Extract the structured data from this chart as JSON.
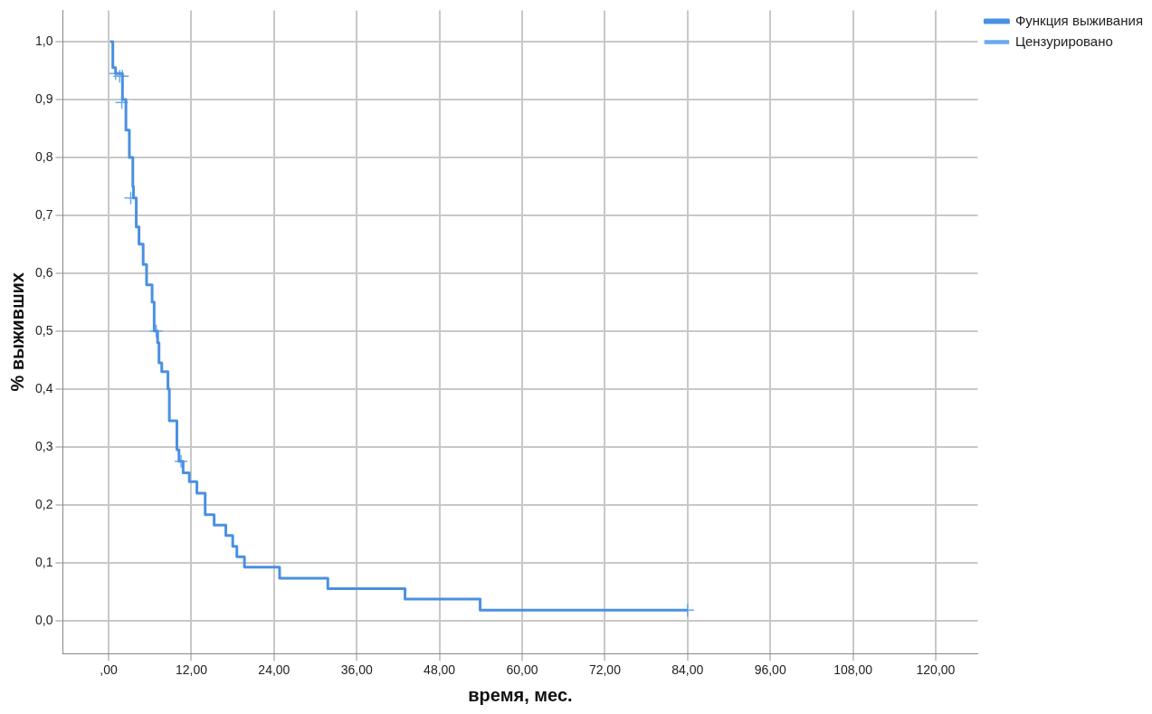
{
  "chart_data": {
    "type": "step",
    "xlabel": "время, мес.",
    "ylabel": "% выживших",
    "legend": "top right",
    "grid": true,
    "xlim": [
      -6.65,
      126.1
    ],
    "ylim": [
      -0.057,
      1.054
    ],
    "xticks": [
      {
        "value": 0,
        "label": ",00"
      },
      {
        "value": 12,
        "label": "12,00"
      },
      {
        "value": 24,
        "label": "24,00"
      },
      {
        "value": 36,
        "label": "36,00"
      },
      {
        "value": 48,
        "label": "48,00"
      },
      {
        "value": 60,
        "label": "60,00"
      },
      {
        "value": 72,
        "label": "72,00"
      },
      {
        "value": 84,
        "label": "84,00"
      },
      {
        "value": 96,
        "label": "96,00"
      },
      {
        "value": 108,
        "label": "108,00"
      },
      {
        "value": 120,
        "label": "120,00"
      }
    ],
    "yticks": [
      {
        "value": 0,
        "label": "0,0"
      },
      {
        "value": 0.1,
        "label": "0,1"
      },
      {
        "value": 0.2,
        "label": "0,2"
      },
      {
        "value": 0.3,
        "label": "0,3"
      },
      {
        "value": 0.4,
        "label": "0,4"
      },
      {
        "value": 0.5,
        "label": "0,5"
      },
      {
        "value": 0.6,
        "label": "0,6"
      },
      {
        "value": 0.7,
        "label": "0,7"
      },
      {
        "value": 0.8,
        "label": "0,8"
      },
      {
        "value": 0.9,
        "label": "0,9"
      },
      {
        "value": 1,
        "label": "1,0"
      }
    ],
    "series": [
      {
        "name": "Функция выживания",
        "type": "step",
        "color": "#4a90e2",
        "marker": "none",
        "x": [
          0.2,
          0.6,
          1.0,
          2.0,
          2.5,
          3.0,
          3.5,
          3.6,
          4.0,
          4.4,
          5.0,
          5.5,
          6.3,
          6.6,
          7.1,
          7.3,
          7.7,
          8.6,
          8.8,
          9.9,
          10.2,
          10.8,
          11.7,
          12.8,
          14.0,
          15.3,
          17.0,
          18.0,
          18.6,
          19.7,
          24.8,
          31.8,
          43.0,
          53.9,
          84.0
        ],
        "values": [
          1.0,
          0.955,
          0.945,
          0.9,
          0.847,
          0.8,
          0.75,
          0.73,
          0.68,
          0.65,
          0.615,
          0.58,
          0.55,
          0.5,
          0.48,
          0.445,
          0.43,
          0.4,
          0.345,
          0.295,
          0.275,
          0.255,
          0.24,
          0.22,
          0.183,
          0.165,
          0.147,
          0.128,
          0.11,
          0.092,
          0.073,
          0.055,
          0.037,
          0.018,
          0.018
        ]
      },
      {
        "name": "Цензурировано",
        "type": "scatter",
        "color": "#6aa8ee",
        "marker": "cross",
        "x": [
          1.0,
          1.6,
          2.0,
          1.9,
          3.2,
          6.9,
          10.5,
          84.0
        ],
        "values": [
          0.945,
          0.94,
          0.94,
          0.895,
          0.73,
          0.5,
          0.275,
          0.018
        ]
      }
    ]
  }
}
